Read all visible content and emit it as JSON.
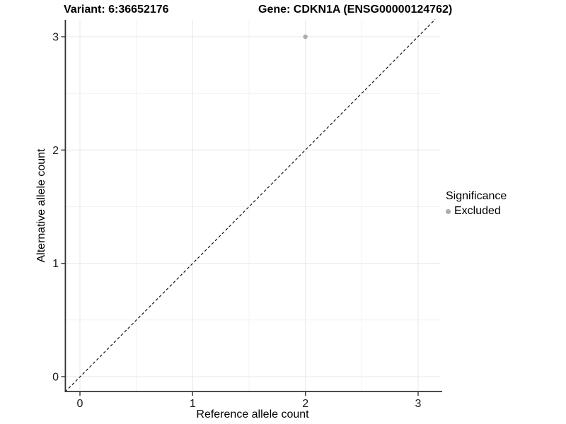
{
  "figure": {
    "title_left": "Variant: 6:36652176",
    "title_right": "Gene: CDKN1A (ENSG00000124762)"
  },
  "chart_data": {
    "type": "scatter",
    "title": "Variant: 6:36652176    Gene: CDKN1A (ENSG00000124762)",
    "xlabel": "Reference allele count",
    "ylabel": "Alternative allele count",
    "xlim": [
      -0.13,
      3.15
    ],
    "ylim": [
      -0.13,
      3.15
    ],
    "xticks": [
      "0",
      "1",
      "2",
      "3"
    ],
    "yticks": [
      "0",
      "1",
      "2",
      "3"
    ],
    "grid": "major and minor gridlines, light gray on white panel",
    "series": [
      {
        "name": "Excluded",
        "marker": "circle",
        "color": "#acacac",
        "points": [
          {
            "x": 2,
            "y": 3
          }
        ]
      }
    ],
    "reference_line": {
      "description": "identity line y = x",
      "style": "dashed",
      "color": "#000000"
    },
    "legend": {
      "title": "Significance",
      "position": "right",
      "items": [
        {
          "label": "Excluded",
          "marker": "circle",
          "color": "#acacac"
        }
      ]
    }
  },
  "colors": {
    "background": "#ffffff",
    "grid_major": "#e7e7e7",
    "grid_minor": "#f2f2f2",
    "axis_line": "#333333",
    "point": "#acacac",
    "text": "#000000"
  }
}
